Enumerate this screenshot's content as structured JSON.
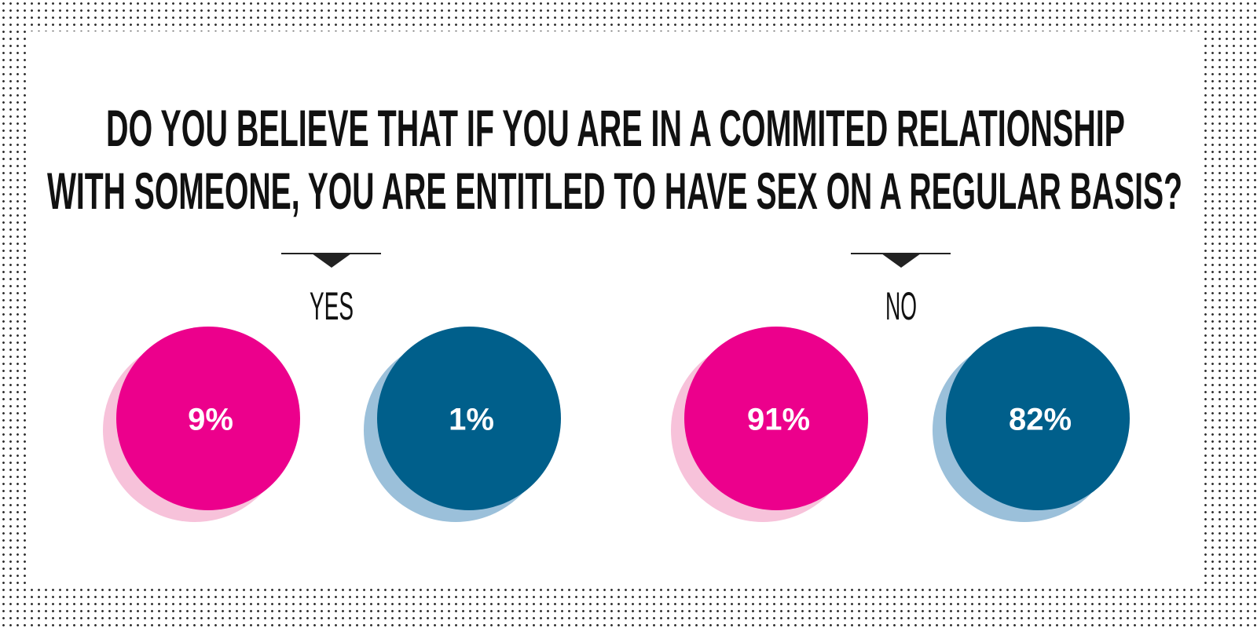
{
  "title": [
    "DO YOU BELIEVE THAT IF YOU ARE IN A COMMITED RELATIONSHIP",
    "WITH SOMEONE, YOU ARE ENTITLED TO HAVE SEX ON A REGULAR BASIS?"
  ],
  "groups": [
    {
      "label": "YES",
      "items": [
        {
          "text": "9%",
          "color": "#ec008c",
          "shadow": "#f7c2da"
        },
        {
          "text": "1%",
          "color": "#005f8b",
          "shadow": "#9bc0da"
        }
      ]
    },
    {
      "label": "NO",
      "items": [
        {
          "text": "91%",
          "color": "#ec008c",
          "shadow": "#f7c2da"
        },
        {
          "text": "82%",
          "color": "#005f8b",
          "shadow": "#9bc0da"
        }
      ]
    }
  ]
}
